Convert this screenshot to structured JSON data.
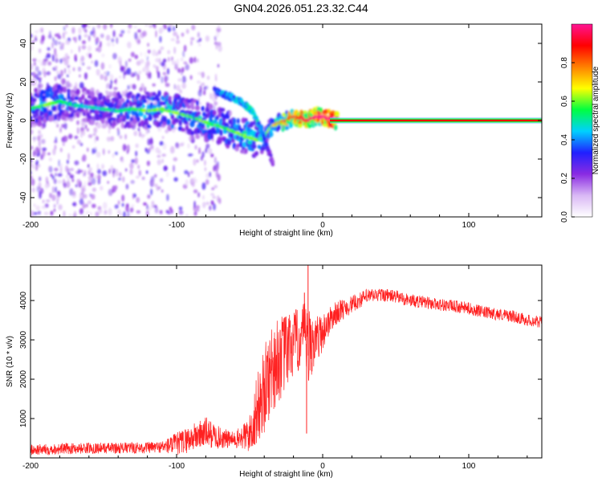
{
  "figure_title": "GN04.2026.051.23.32.C44",
  "chart_data": [
    {
      "type": "heatmap",
      "title": "GN04.2026.051.23.32.C44",
      "xlabel": "Height of straight line (km)",
      "ylabel": "Frequency (Hz)",
      "xlim": [
        -200,
        150
      ],
      "ylim": [
        -50,
        50
      ],
      "xticks": [
        -200,
        -100,
        0,
        100
      ],
      "xtick_labels": [
        "-200",
        "-100",
        "0",
        "100"
      ],
      "yticks": [
        -40,
        -20,
        0,
        20,
        40
      ],
      "ytick_labels": [
        "-40",
        "-20",
        "0",
        "20",
        "40"
      ],
      "colorbar": {
        "label": "Normalized spectral amplitude",
        "range": [
          0,
          1
        ],
        "ticks": [
          0,
          0.2,
          0.4,
          0.6,
          0.8
        ],
        "tick_labels": [
          "0.0",
          "0.2",
          "0.4",
          "0.6",
          "0.8"
        ],
        "colors": [
          "#ffffff",
          "#d9b8f5",
          "#8a2be2",
          "#2020ff",
          "#00d0ff",
          "#00ff40",
          "#ffff00",
          "#ff8000",
          "#ff0000",
          "#ff1493"
        ]
      },
      "ridge": {
        "x": [
          -200,
          -190,
          -180,
          -170,
          -160,
          -150,
          -140,
          -130,
          -120,
          -110,
          -100,
          -90,
          -80,
          -70,
          -60,
          -50,
          -45,
          -40,
          -35,
          -30,
          -25,
          -20,
          -15,
          -10,
          -5,
          0,
          5,
          10,
          150
        ],
        "y": [
          6,
          8,
          10,
          8,
          7,
          6,
          5,
          6,
          5,
          6,
          4,
          2,
          -1,
          -3,
          -6,
          -9,
          -10,
          -9,
          -3,
          -1,
          0,
          2,
          1,
          0,
          2,
          2,
          1,
          0,
          0
        ],
        "amplitude": [
          0.35,
          0.45,
          0.4,
          0.35,
          0.3,
          0.35,
          0.35,
          0.4,
          0.45,
          0.45,
          0.45,
          0.4,
          0.45,
          0.4,
          0.45,
          0.45,
          0.45,
          0.4,
          0.5,
          0.6,
          0.7,
          0.75,
          0.8,
          0.8,
          0.85,
          0.9,
          0.9,
          0.9,
          0.9
        ]
      },
      "secondary_branch": {
        "x": [
          -74,
          -70,
          -62,
          -55,
          -50,
          -46,
          -43,
          -40,
          -38,
          -36,
          -34
        ],
        "y": [
          16,
          14,
          12,
          9,
          6,
          2,
          -4,
          -10,
          -14,
          -18,
          -22
        ],
        "amplitude": [
          0.3,
          0.4,
          0.4,
          0.4,
          0.45,
          0.45,
          0.4,
          0.35,
          0.3,
          0.25,
          0.2
        ]
      },
      "scatter_region": {
        "x_range": [
          -200,
          -70
        ],
        "y_range": [
          -50,
          50
        ],
        "amplitude": [
          0.05,
          0.3
        ]
      }
    },
    {
      "type": "line",
      "xlabel": "Height of straight line (km)",
      "ylabel": "SNR (10 * v/v)",
      "xlim": [
        -200,
        150
      ],
      "ylim": [
        0,
        4900
      ],
      "xticks": [
        -200,
        -100,
        0,
        100
      ],
      "xtick_labels": [
        "-200",
        "-100",
        "0",
        "100"
      ],
      "yticks": [
        1000,
        2000,
        3000,
        4000
      ],
      "ytick_labels": [
        "1000",
        "2000",
        "3000",
        "4000"
      ],
      "color": "#ff2020",
      "envelope": {
        "x": [
          -200,
          -180,
          -160,
          -140,
          -120,
          -110,
          -100,
          -90,
          -80,
          -70,
          -60,
          -50,
          -45,
          -40,
          -35,
          -30,
          -25,
          -20,
          -15,
          -12,
          -10,
          -8,
          -5,
          0,
          5,
          10,
          15,
          20,
          30,
          40,
          50,
          60,
          70,
          80,
          90,
          100,
          110,
          120,
          130,
          140,
          150
        ],
        "y": [
          200,
          230,
          250,
          250,
          260,
          280,
          350,
          500,
          650,
          500,
          450,
          600,
          1200,
          1700,
          2300,
          2500,
          2700,
          2900,
          3000,
          3200,
          2600,
          2900,
          3000,
          3200,
          3500,
          3700,
          3800,
          3900,
          4100,
          4150,
          4100,
          4000,
          3950,
          3900,
          3850,
          3800,
          3700,
          3650,
          3600,
          3500,
          3450
        ]
      },
      "noise": {
        "x": [
          -200,
          -150,
          -110,
          -100,
          -90,
          -80,
          -70,
          -60,
          -50,
          -45,
          -40,
          -35,
          -30,
          -25,
          -20,
          -15,
          -12,
          -10,
          -8,
          -5,
          0,
          5,
          10,
          20,
          40,
          80,
          150
        ],
        "amplitude": [
          140,
          140,
          150,
          300,
          350,
          400,
          280,
          200,
          500,
          900,
          1100,
          1200,
          1100,
          1000,
          900,
          800,
          800,
          1200,
          900,
          600,
          500,
          350,
          300,
          220,
          170,
          160,
          150
        ]
      },
      "spikes": [
        {
          "x": -10,
          "y": 4900
        },
        {
          "x": -12.5,
          "y": 4200
        },
        {
          "x": -11,
          "y": 620
        }
      ]
    }
  ]
}
